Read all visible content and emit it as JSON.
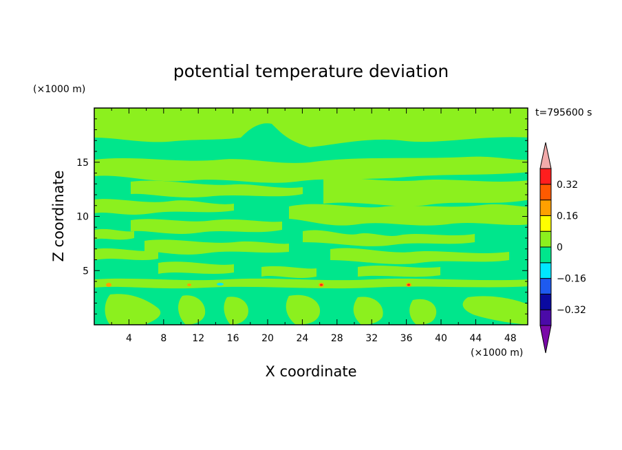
{
  "chart_data": {
    "type": "heatmap",
    "title": "potential temperature deviation",
    "xlabel": "X coordinate",
    "ylabel": "Z coordinate",
    "x_unit": "(×1000 m)",
    "y_unit": "(×1000 m)",
    "time_label": "t=795600 s",
    "xlim": [
      0,
      50
    ],
    "ylim": [
      0,
      20
    ],
    "x_ticks": [
      4,
      8,
      12,
      16,
      20,
      24,
      28,
      32,
      36,
      40,
      44,
      48
    ],
    "y_ticks": [
      5,
      10,
      15
    ],
    "colorbar": {
      "levels": [
        -0.4,
        -0.32,
        -0.24,
        -0.16,
        -0.08,
        0,
        0.08,
        0.16,
        0.24,
        0.32,
        0.4
      ],
      "colors": [
        "#4b0aa8",
        "#0a0aa0",
        "#1e5af0",
        "#00e6ff",
        "#00e68c",
        "#8cf01e",
        "#ffff00",
        "#ffa000",
        "#ff5a00",
        "#ff1e1e"
      ],
      "under_color": "#7a0aa8",
      "over_color": "#f2aaaa",
      "labels": [
        "0.32",
        "0.16",
        "0",
        "−0.16",
        "−0.32"
      ],
      "label_values": [
        0.32,
        0.16,
        0,
        -0.16,
        -0.32
      ]
    },
    "field_colors": {
      "background": "#00e68c",
      "patches": "#8cf01e",
      "warm": "#ffa000",
      "hot": "#ff1e1e",
      "cold": "#00e6ff"
    }
  }
}
